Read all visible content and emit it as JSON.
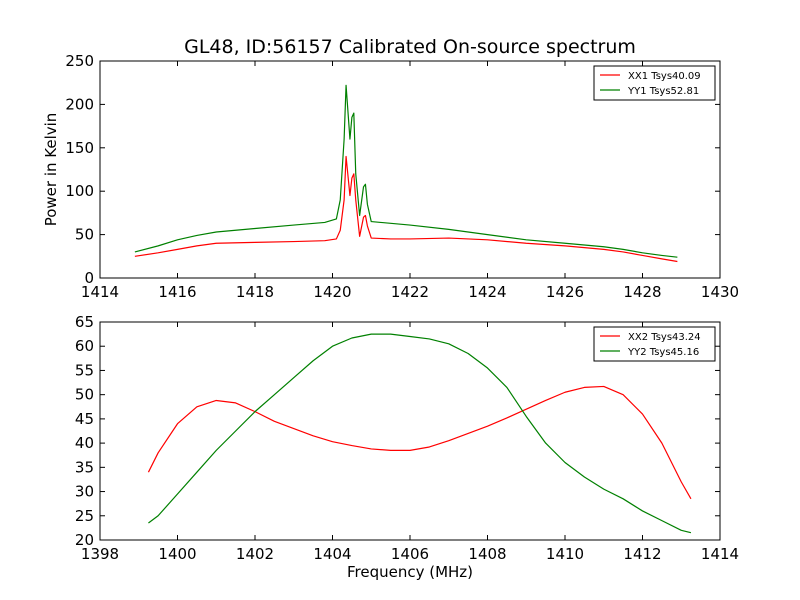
{
  "figure": {
    "title": "GL48, ID:56157 Calibrated On-source spectrum"
  },
  "chart_data": [
    {
      "type": "line",
      "title": "GL48, ID:56157 Calibrated On-source spectrum",
      "xlabel": "",
      "ylabel": "Power in Kelvin",
      "xlim": [
        1414,
        1430
      ],
      "ylim": [
        0,
        250
      ],
      "xticks": [
        1414,
        1416,
        1418,
        1420,
        1422,
        1424,
        1426,
        1428,
        1430
      ],
      "yticks": [
        0,
        50,
        100,
        150,
        200,
        250
      ],
      "legend_position": "top-right",
      "grid": false,
      "series": [
        {
          "name": "XX1 Tsys40.09",
          "color": "#ff0000",
          "x": [
            1414.9,
            1415.5,
            1416.0,
            1416.5,
            1417.0,
            1418.0,
            1419.0,
            1419.8,
            1420.1,
            1420.2,
            1420.3,
            1420.35,
            1420.45,
            1420.5,
            1420.55,
            1420.6,
            1420.7,
            1420.8,
            1420.85,
            1420.9,
            1421.0,
            1421.5,
            1422.0,
            1423.0,
            1424.0,
            1425.0,
            1426.0,
            1427.0,
            1427.5,
            1428.0,
            1428.5,
            1428.9
          ],
          "y": [
            25,
            29,
            33,
            37,
            40,
            41,
            42,
            43,
            45,
            55,
            90,
            140,
            95,
            115,
            120,
            90,
            48,
            70,
            72,
            60,
            46,
            45,
            45,
            46,
            44,
            40,
            37,
            33,
            30,
            26,
            22,
            19
          ]
        },
        {
          "name": "YY1 Tsys52.81",
          "color": "#008000",
          "x": [
            1414.9,
            1415.5,
            1416.0,
            1416.5,
            1417.0,
            1418.0,
            1419.0,
            1419.8,
            1420.1,
            1420.2,
            1420.3,
            1420.35,
            1420.45,
            1420.5,
            1420.55,
            1420.6,
            1420.7,
            1420.8,
            1420.85,
            1420.9,
            1421.0,
            1421.5,
            1422.0,
            1423.0,
            1424.0,
            1425.0,
            1426.0,
            1427.0,
            1427.5,
            1428.0,
            1428.5,
            1428.9
          ],
          "y": [
            30,
            37,
            44,
            49,
            53,
            57,
            61,
            64,
            68,
            90,
            160,
            222,
            160,
            185,
            190,
            120,
            72,
            105,
            108,
            85,
            65,
            63,
            61,
            56,
            50,
            44,
            40,
            36,
            33,
            29,
            26,
            24
          ]
        }
      ]
    },
    {
      "type": "line",
      "title": "",
      "xlabel": "Frequency (MHz)",
      "ylabel": "",
      "xlim": [
        1398,
        1414
      ],
      "ylim": [
        20,
        65
      ],
      "xticks": [
        1398,
        1400,
        1402,
        1404,
        1406,
        1408,
        1410,
        1412,
        1414
      ],
      "yticks": [
        20,
        25,
        30,
        35,
        40,
        45,
        50,
        55,
        60,
        65
      ],
      "legend_position": "top-right",
      "grid": false,
      "series": [
        {
          "name": "XX2 Tsys43.24",
          "color": "#ff0000",
          "x": [
            1399.25,
            1399.5,
            1400.0,
            1400.5,
            1401.0,
            1401.5,
            1402.0,
            1402.5,
            1403.0,
            1403.5,
            1404.0,
            1404.5,
            1405.0,
            1405.5,
            1406.0,
            1406.5,
            1407.0,
            1407.5,
            1408.0,
            1408.5,
            1409.0,
            1409.5,
            1410.0,
            1410.5,
            1411.0,
            1411.5,
            1412.0,
            1412.5,
            1413.0,
            1413.25
          ],
          "y": [
            34,
            38,
            44,
            47.5,
            48.8,
            48.3,
            46.5,
            44.5,
            43,
            41.5,
            40.3,
            39.5,
            38.8,
            38.5,
            38.5,
            39.2,
            40.5,
            42,
            43.5,
            45.2,
            47,
            48.8,
            50.5,
            51.5,
            51.7,
            50,
            46,
            40,
            32,
            28.5
          ]
        },
        {
          "name": "YY2 Tsys45.16",
          "color": "#008000",
          "x": [
            1399.25,
            1399.5,
            1400.0,
            1400.5,
            1401.0,
            1401.5,
            1402.0,
            1402.5,
            1403.0,
            1403.5,
            1404.0,
            1404.5,
            1405.0,
            1405.5,
            1406.0,
            1406.5,
            1407.0,
            1407.5,
            1408.0,
            1408.5,
            1409.0,
            1409.5,
            1410.0,
            1410.5,
            1411.0,
            1411.5,
            1412.0,
            1412.5,
            1413.0,
            1413.25
          ],
          "y": [
            23.5,
            25,
            29.5,
            34,
            38.5,
            42.5,
            46.5,
            50,
            53.5,
            57,
            60,
            61.7,
            62.5,
            62.5,
            62,
            61.5,
            60.5,
            58.5,
            55.5,
            51.5,
            45.5,
            40,
            36,
            33,
            30.5,
            28.5,
            26,
            24,
            22,
            21.5
          ]
        }
      ]
    }
  ]
}
